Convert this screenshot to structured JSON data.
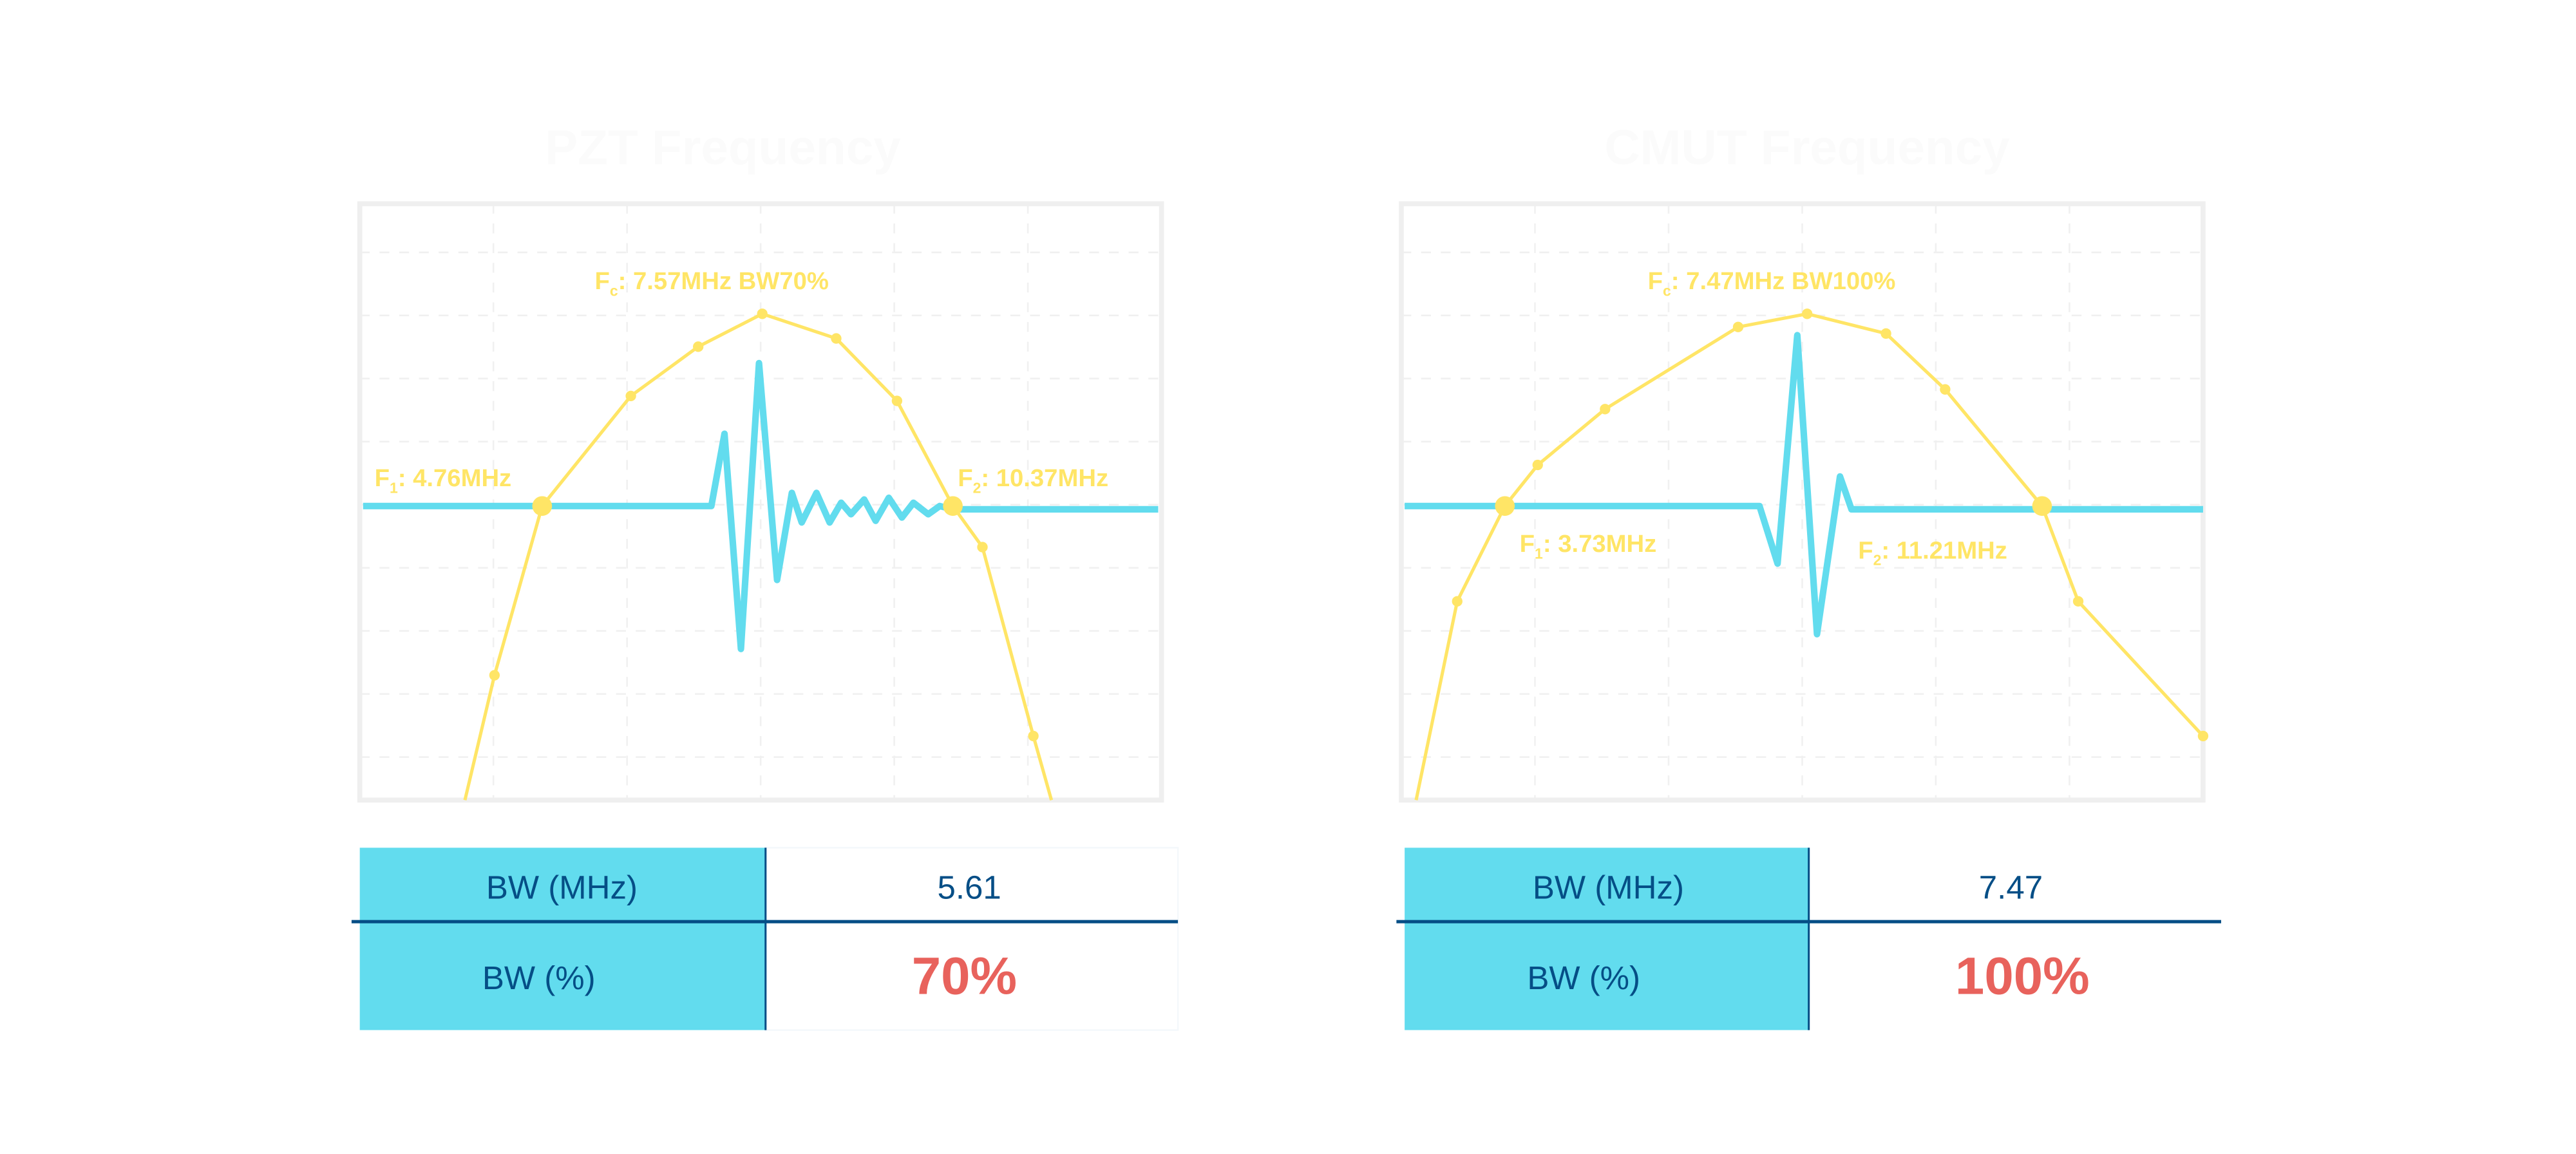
{
  "colors": {
    "frequency_curve": "#FFE566",
    "pulse_waveform": "#62DCEE",
    "table_header_bg": "#62DCEE",
    "table_text": "#054E86",
    "percent_value": "#E8625C",
    "frame": "#EFEFEF"
  },
  "chart_data": [
    {
      "type": "line",
      "title": "PZT Frequency",
      "grid": true,
      "annotations": {
        "fc": {
          "main": "F",
          "sub": "c",
          "rest": ": 7.57MHz BW70%"
        },
        "f1": {
          "main": "F",
          "sub": "1",
          "rest": ": 4.76MHz"
        },
        "f2": {
          "main": "F",
          "sub": "2",
          "rest": ": 10.37MHz"
        }
      },
      "table": [
        {
          "label": "BW (MHz)",
          "value": "5.61"
        },
        {
          "label": "BW (%)",
          "value": "70%"
        }
      ]
    },
    {
      "type": "line",
      "title": "CMUT Frequency",
      "grid": true,
      "annotations": {
        "fc": {
          "main": "F",
          "sub": "c",
          "rest": ": 7.47MHz BW100%"
        },
        "f1": {
          "main": "F",
          "sub": "1",
          "rest": ": 3.73MHz"
        },
        "f2": {
          "main": "F",
          "sub": "2",
          "rest": ": 11.21MHz"
        }
      },
      "table": [
        {
          "label": "BW (MHz)",
          "value": "7.47"
        },
        {
          "label": "BW (%)",
          "value": "100%"
        }
      ]
    }
  ]
}
